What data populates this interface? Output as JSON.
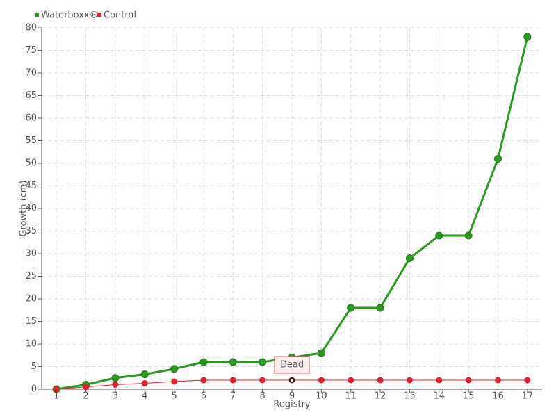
{
  "chart_data": {
    "type": "line",
    "xlabel": "Registry",
    "ylabel": "Growth (cm)",
    "x": [
      1,
      2,
      3,
      4,
      5,
      6,
      7,
      8,
      9,
      10,
      11,
      12,
      13,
      14,
      15,
      16,
      17
    ],
    "series": [
      {
        "name": "Waterboxx®",
        "color": "#2a9a1e",
        "values": [
          0,
          1,
          2.5,
          3.3,
          4.5,
          6,
          6,
          6,
          7,
          8,
          18,
          18,
          29,
          34,
          34,
          51,
          78
        ]
      },
      {
        "name": "Control",
        "color": "#e0202c",
        "values": [
          0,
          0.5,
          1,
          1.3,
          1.7,
          2,
          2,
          2,
          2,
          2,
          2,
          2,
          2,
          2,
          2,
          2,
          2
        ]
      }
    ],
    "xlim": [
      0.5,
      17.5
    ],
    "xticks": [
      1,
      2,
      3,
      4,
      5,
      6,
      7,
      8,
      9,
      10,
      11,
      12,
      13,
      14,
      15,
      16,
      17
    ],
    "ylim": [
      0,
      80
    ],
    "yticks": [
      0,
      5,
      10,
      15,
      20,
      25,
      30,
      35,
      40,
      45,
      50,
      55,
      60,
      65,
      70,
      75,
      80
    ],
    "grid": true,
    "legend": "top-left",
    "annotations": [
      {
        "text": "Dead",
        "x": 9,
        "y": 2
      }
    ]
  }
}
